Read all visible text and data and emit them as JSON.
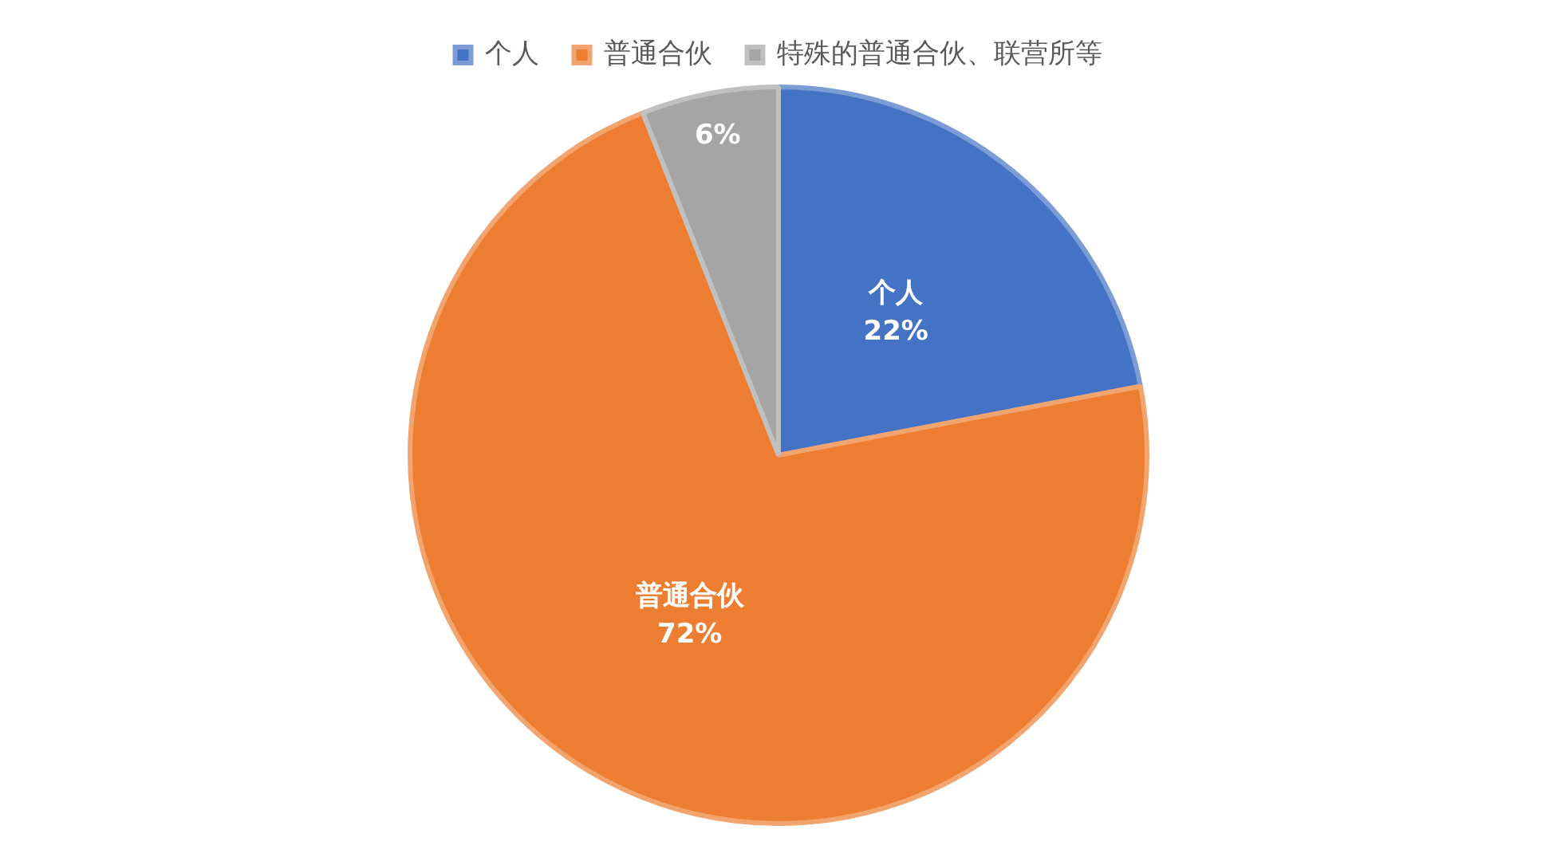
{
  "chart_data": {
    "type": "pie",
    "categories": [
      "个人",
      "普通合伙",
      "特殊的普通合伙、联营所等"
    ],
    "values": [
      22,
      72,
      6
    ],
    "colors": [
      "#4472c4",
      "#ed7d31",
      "#a5a5a5"
    ],
    "value_labels": [
      "个人\n22%",
      "普通合伙\n72%",
      "6%"
    ],
    "legend": "top"
  }
}
